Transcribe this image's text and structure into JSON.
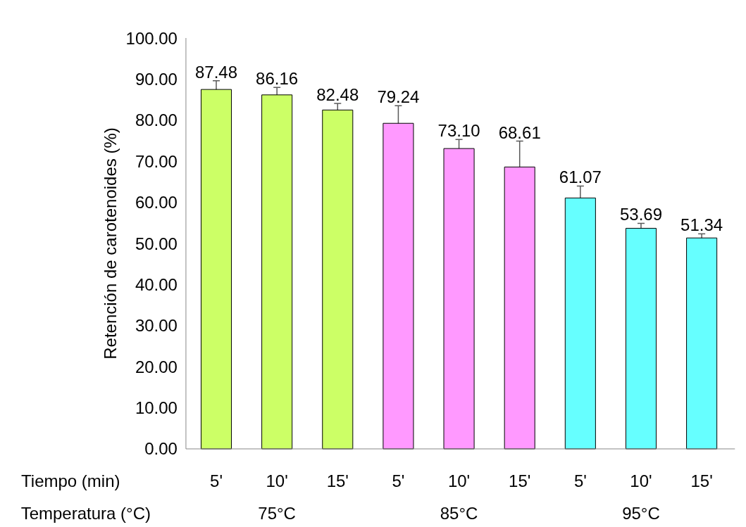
{
  "chart_data": {
    "type": "bar",
    "ylabel": "Retención de carotenoides (%)",
    "categories": [
      "5'",
      "10'",
      "15'",
      "5'",
      "10'",
      "15'",
      "5'",
      "10'",
      "15'"
    ],
    "values": [
      87.48,
      86.16,
      82.48,
      79.24,
      73.1,
      68.61,
      61.07,
      53.69,
      51.34
    ],
    "value_labels": [
      "87.48",
      "86.16",
      "82.48",
      "79.24",
      "73.10",
      "68.61",
      "61.07",
      "53.69",
      "51.34"
    ],
    "colors": [
      "#ccff66",
      "#ccff66",
      "#ccff66",
      "#ff99ff",
      "#ff99ff",
      "#ff99ff",
      "#66ffff",
      "#66ffff",
      "#66ffff"
    ],
    "errors": [
      2.1,
      1.8,
      1.6,
      4.3,
      2.2,
      6.3,
      2.9,
      1.2,
      1.0
    ],
    "ylim": [
      0,
      100
    ],
    "yticks": [
      {
        "value": 0,
        "label": "0.00"
      },
      {
        "value": 10,
        "label": "10.00"
      },
      {
        "value": 20,
        "label": "20.00"
      },
      {
        "value": 30,
        "label": "30.00"
      },
      {
        "value": 40,
        "label": "40.00"
      },
      {
        "value": 50,
        "label": "50.00"
      },
      {
        "value": 60,
        "label": "60.00"
      },
      {
        "value": 70,
        "label": "70.00"
      },
      {
        "value": 80,
        "label": "80.00"
      },
      {
        "value": 90,
        "label": "90.00"
      },
      {
        "value": 100,
        "label": "100.00"
      }
    ],
    "annotations": [
      "Tiempo (min)",
      "Temperatura (°C)",
      "75°C",
      "85°C",
      "95°C"
    ],
    "grid": false
  }
}
